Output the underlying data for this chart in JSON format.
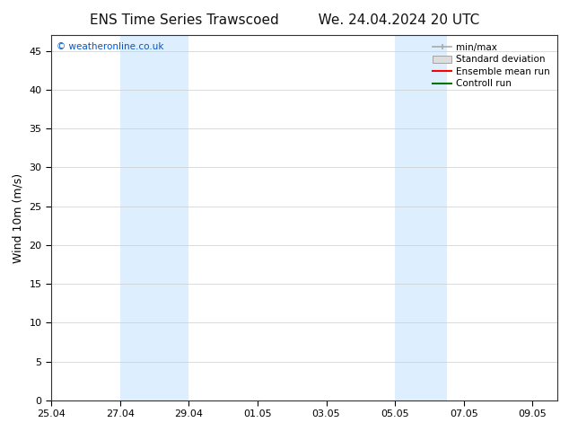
{
  "title_left": "ENS Time Series Trawscoed",
  "title_right": "We. 24.04.2024 20 UTC",
  "ylabel": "Wind 10m (m/s)",
  "ylim": [
    0,
    47
  ],
  "yticks": [
    0,
    5,
    10,
    15,
    20,
    25,
    30,
    35,
    40,
    45
  ],
  "xtick_labels": [
    "25.04",
    "27.04",
    "29.04",
    "01.05",
    "03.05",
    "05.05",
    "07.05",
    "09.05"
  ],
  "xtick_positions": [
    0,
    2,
    4,
    6,
    8,
    10,
    12,
    14
  ],
  "xlim": [
    0,
    14.73
  ],
  "shaded_regions": [
    {
      "start": 2,
      "end": 4
    },
    {
      "start": 10,
      "end": 11.5
    }
  ],
  "shaded_color": "#ddeeff",
  "background_color": "#ffffff",
  "watermark_text": "© weatheronline.co.uk",
  "watermark_color": "#0055cc",
  "legend_items": [
    {
      "label": "min/max",
      "color": "#aaaaaa"
    },
    {
      "label": "Standard deviation",
      "color": "#cccccc"
    },
    {
      "label": "Ensemble mean run",
      "color": "#ff0000"
    },
    {
      "label": "Controll run",
      "color": "#007700"
    }
  ],
  "title_fontsize": 11,
  "ylabel_fontsize": 9,
  "tick_fontsize": 8,
  "legend_fontsize": 7.5
}
